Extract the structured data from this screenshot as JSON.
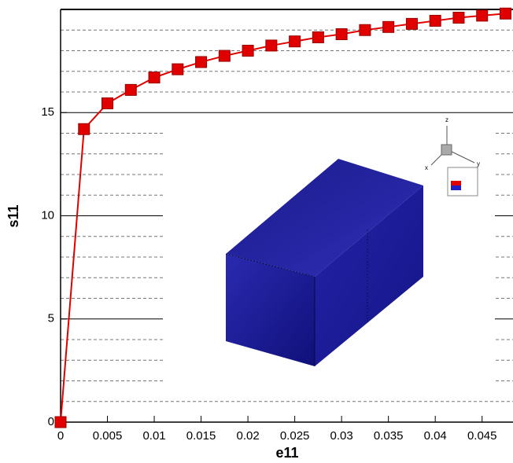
{
  "chart_data": {
    "type": "line",
    "xlabel": "e11",
    "ylabel": "s11",
    "x": [
      0,
      0.0025,
      0.005,
      0.0075,
      0.01,
      0.0125,
      0.015,
      0.0175,
      0.02,
      0.0225,
      0.025,
      0.0275,
      0.03,
      0.0325,
      0.035,
      0.0375,
      0.04,
      0.0425,
      0.045,
      0.0475
    ],
    "series": [
      {
        "name": "s11",
        "color": "#e00000",
        "values": [
          0,
          14.2,
          15.45,
          16.1,
          16.7,
          17.1,
          17.45,
          17.75,
          18.0,
          18.25,
          18.45,
          18.65,
          18.8,
          19.0,
          19.15,
          19.3,
          19.45,
          19.6,
          19.7,
          19.8
        ]
      }
    ],
    "xlim": [
      0,
      0.0483
    ],
    "ylim": [
      0,
      20
    ],
    "xticks": [
      0,
      0.005,
      0.01,
      0.015,
      0.02,
      0.025,
      0.03,
      0.035,
      0.04,
      0.045
    ],
    "yticks": [
      0,
      5,
      10,
      15
    ],
    "yminorticks": [
      1,
      2,
      3,
      4,
      6,
      7,
      8,
      9,
      11,
      12,
      13,
      14,
      16,
      17,
      18,
      19
    ],
    "grid": true,
    "annotations": [
      "z",
      "x",
      "y"
    ]
  }
}
